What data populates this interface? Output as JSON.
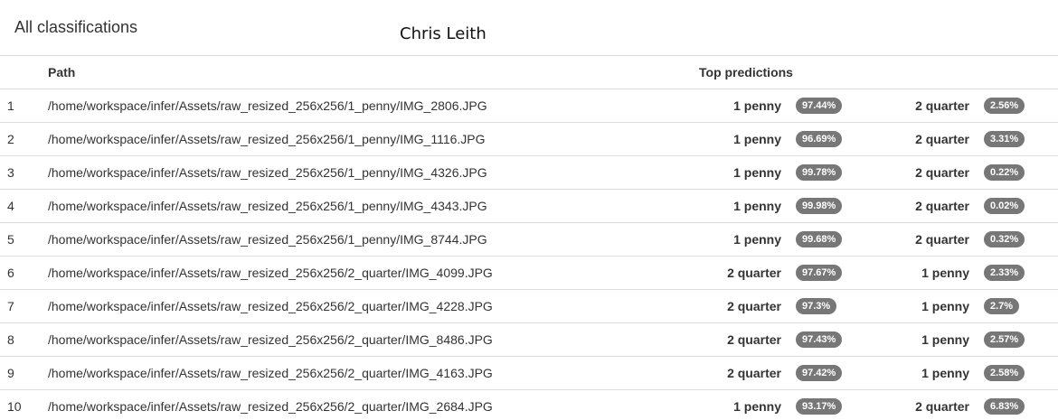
{
  "panel": {
    "title": "All classifications",
    "author": "Chris Leith"
  },
  "table": {
    "headers": {
      "path": "Path",
      "predictions": "Top predictions"
    },
    "rows": [
      {
        "num": "1",
        "path": "/home/workspace/infer/Assets/raw_resized_256x256/1_penny/IMG_2806.JPG",
        "pred1": {
          "label": "1 penny",
          "pct": "97.44%"
        },
        "pred2": {
          "label": "2 quarter",
          "pct": "2.56%"
        }
      },
      {
        "num": "2",
        "path": "/home/workspace/infer/Assets/raw_resized_256x256/1_penny/IMG_1116.JPG",
        "pred1": {
          "label": "1 penny",
          "pct": "96.69%"
        },
        "pred2": {
          "label": "2 quarter",
          "pct": "3.31%"
        }
      },
      {
        "num": "3",
        "path": "/home/workspace/infer/Assets/raw_resized_256x256/1_penny/IMG_4326.JPG",
        "pred1": {
          "label": "1 penny",
          "pct": "99.78%"
        },
        "pred2": {
          "label": "2 quarter",
          "pct": "0.22%"
        }
      },
      {
        "num": "4",
        "path": "/home/workspace/infer/Assets/raw_resized_256x256/1_penny/IMG_4343.JPG",
        "pred1": {
          "label": "1 penny",
          "pct": "99.98%"
        },
        "pred2": {
          "label": "2 quarter",
          "pct": "0.02%"
        }
      },
      {
        "num": "5",
        "path": "/home/workspace/infer/Assets/raw_resized_256x256/1_penny/IMG_8744.JPG",
        "pred1": {
          "label": "1 penny",
          "pct": "99.68%"
        },
        "pred2": {
          "label": "2 quarter",
          "pct": "0.32%"
        }
      },
      {
        "num": "6",
        "path": "/home/workspace/infer/Assets/raw_resized_256x256/2_quarter/IMG_4099.JPG",
        "pred1": {
          "label": "2 quarter",
          "pct": "97.67%"
        },
        "pred2": {
          "label": "1 penny",
          "pct": "2.33%"
        }
      },
      {
        "num": "7",
        "path": "/home/workspace/infer/Assets/raw_resized_256x256/2_quarter/IMG_4228.JPG",
        "pred1": {
          "label": "2 quarter",
          "pct": "97.3%"
        },
        "pred2": {
          "label": "1 penny",
          "pct": "2.7%"
        }
      },
      {
        "num": "8",
        "path": "/home/workspace/infer/Assets/raw_resized_256x256/2_quarter/IMG_8486.JPG",
        "pred1": {
          "label": "2 quarter",
          "pct": "97.43%"
        },
        "pred2": {
          "label": "1 penny",
          "pct": "2.57%"
        }
      },
      {
        "num": "9",
        "path": "/home/workspace/infer/Assets/raw_resized_256x256/2_quarter/IMG_4163.JPG",
        "pred1": {
          "label": "2 quarter",
          "pct": "97.42%"
        },
        "pred2": {
          "label": "1 penny",
          "pct": "2.58%"
        }
      },
      {
        "num": "10",
        "path": "/home/workspace/infer/Assets/raw_resized_256x256/2_quarter/IMG_2684.JPG",
        "pred1": {
          "label": "1 penny",
          "pct": "93.17%"
        },
        "pred2": {
          "label": "2 quarter",
          "pct": "6.83%"
        }
      }
    ]
  },
  "colors": {
    "badge_bg": "#777777",
    "border": "#dddddd",
    "text": "#333333"
  }
}
